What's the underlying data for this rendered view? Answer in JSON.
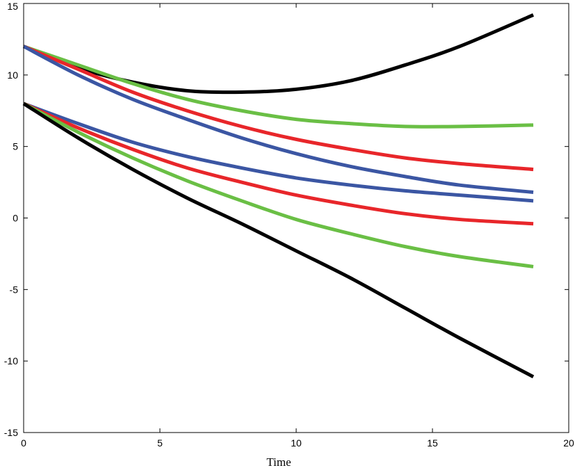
{
  "chart_data": {
    "type": "line",
    "title": "",
    "xlabel": "Time",
    "ylabel": "",
    "xlim": [
      0,
      20
    ],
    "ylim": [
      -15,
      15
    ],
    "xticks": [
      0,
      5,
      10,
      15,
      20
    ],
    "yticks": [
      -15,
      -10,
      -5,
      0,
      5,
      10,
      15
    ],
    "grid": false,
    "legend": "none",
    "series": [
      {
        "color": "#000000",
        "x": [
          0,
          2,
          4,
          6,
          8,
          10,
          12,
          14,
          16,
          18.7
        ],
        "y": [
          12,
          10.5,
          9.5,
          8.9,
          8.8,
          9.0,
          9.6,
          10.7,
          12.0,
          14.2
        ]
      },
      {
        "color": "#6abf45",
        "x": [
          0,
          2,
          4,
          6,
          8,
          10,
          12,
          14,
          16,
          18.7
        ],
        "y": [
          12,
          10.7,
          9.4,
          8.3,
          7.5,
          6.9,
          6.6,
          6.4,
          6.4,
          6.5
        ]
      },
      {
        "color": "#e8262a",
        "x": [
          0,
          2,
          4,
          6,
          8,
          10,
          12,
          14,
          16,
          18.7
        ],
        "y": [
          12,
          10.4,
          8.8,
          7.5,
          6.4,
          5.5,
          4.8,
          4.2,
          3.8,
          3.4
        ]
      },
      {
        "color": "#3b56a3",
        "x": [
          0,
          2,
          4,
          6,
          8,
          10,
          12,
          14,
          16,
          18.7
        ],
        "y": [
          12,
          10.0,
          8.3,
          6.9,
          5.6,
          4.5,
          3.6,
          2.9,
          2.3,
          1.8
        ]
      },
      {
        "color": "#3b56a3",
        "x": [
          0,
          2,
          4,
          6,
          8,
          10,
          12,
          14,
          16,
          18.7
        ],
        "y": [
          8,
          6.6,
          5.3,
          4.3,
          3.5,
          2.8,
          2.3,
          1.9,
          1.6,
          1.2
        ]
      },
      {
        "color": "#e8262a",
        "x": [
          0,
          2,
          4,
          6,
          8,
          10,
          12,
          14,
          16,
          18.7
        ],
        "y": [
          8,
          6.3,
          4.8,
          3.5,
          2.5,
          1.6,
          0.9,
          0.3,
          -0.1,
          -0.4
        ]
      },
      {
        "color": "#6abf45",
        "x": [
          0,
          2,
          4,
          6,
          8,
          10,
          12,
          14,
          16,
          18.7
        ],
        "y": [
          8,
          6.0,
          4.2,
          2.6,
          1.2,
          -0.1,
          -1.1,
          -2.0,
          -2.7,
          -3.4
        ]
      },
      {
        "color": "#000000",
        "x": [
          0,
          2,
          4,
          6,
          8,
          10,
          12,
          14,
          16,
          18.7
        ],
        "y": [
          8,
          5.6,
          3.4,
          1.4,
          -0.4,
          -2.3,
          -4.2,
          -6.3,
          -8.4,
          -11.1
        ]
      }
    ]
  }
}
